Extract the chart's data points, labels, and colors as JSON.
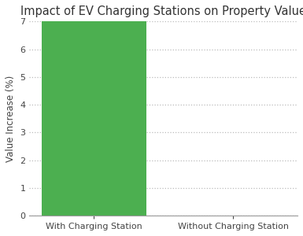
{
  "categories": [
    "With Charging Station",
    "Without Charging Station"
  ],
  "values": [
    7,
    0
  ],
  "bar_color_with": "#4CAF50",
  "bar_color_without": "#4CAF50",
  "title": "Impact of EV Charging Stations on Property Value",
  "ylabel": "Value Increase (%)",
  "ylim": [
    0,
    7
  ],
  "yticks": [
    0,
    1,
    2,
    3,
    4,
    5,
    6,
    7
  ],
  "title_fontsize": 10.5,
  "label_fontsize": 8.5,
  "tick_fontsize": 8,
  "background_color": "#ffffff",
  "grid_color": "#bbbbbb",
  "bar_width": 0.75
}
